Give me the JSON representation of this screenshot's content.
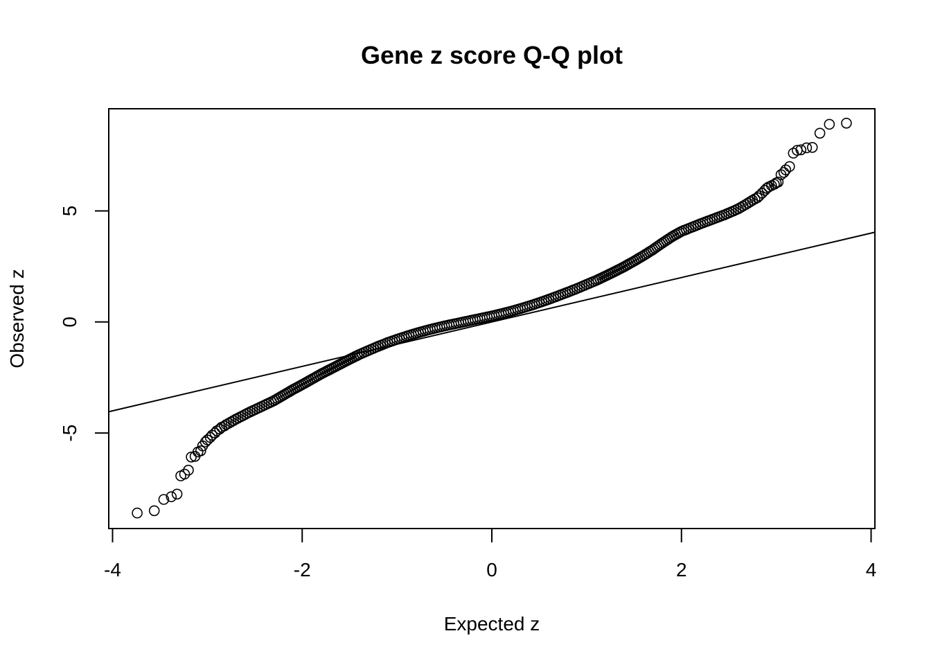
{
  "chart_data": {
    "type": "scatter",
    "title": "Gene z score Q-Q plot",
    "xlabel": "Expected z",
    "ylabel": "Observed z",
    "xlim": [
      -4.04,
      4.04
    ],
    "ylim": [
      -9.3,
      9.6
    ],
    "xticks": [
      -4,
      -2,
      0,
      2,
      4
    ],
    "yticks": [
      -5,
      0,
      5
    ],
    "grid": false,
    "reference_line": {
      "intercept": 0,
      "slope": 1
    },
    "points": {
      "x": [
        -3.74,
        -3.56,
        -3.46,
        -3.38,
        -3.32,
        -3.28,
        -3.24,
        -3.2,
        -3.17,
        -3.13,
        -3.1,
        -3.07,
        -3.05,
        -3.02,
        -3.0,
        -2.97,
        -2.95,
        -2.92,
        -2.9,
        -2.87,
        -2.85,
        -2.82,
        -2.8,
        -2.75,
        -2.7,
        -2.65,
        -2.6,
        -2.55,
        -2.5,
        -2.45,
        -2.4,
        -2.35,
        -2.3,
        -2.2,
        -2.1,
        -2.0,
        -1.9,
        -1.8,
        -1.7,
        -1.6,
        -1.5,
        -1.4,
        -1.3,
        -1.2,
        -1.1,
        -1.0,
        -0.9,
        -0.8,
        -0.7,
        -0.6,
        -0.5,
        -0.4,
        -0.3,
        -0.2,
        -0.1,
        0.0,
        0.1,
        0.2,
        0.3,
        0.4,
        0.5,
        0.6,
        0.7,
        0.8,
        0.9,
        1.0,
        1.1,
        1.2,
        1.3,
        1.4,
        1.5,
        1.6,
        1.7,
        1.8,
        1.9,
        2.0,
        2.1,
        2.2,
        2.3,
        2.35,
        2.4,
        2.45,
        2.5,
        2.55,
        2.6,
        2.65,
        2.7,
        2.75,
        2.8,
        2.82,
        2.85,
        2.88,
        2.9,
        2.92,
        2.95,
        2.98,
        3.0,
        3.02,
        3.05,
        3.08,
        3.1,
        3.14,
        3.18,
        3.22,
        3.26,
        3.32,
        3.38,
        3.46,
        3.56,
        3.74
      ],
      "y": [
        -8.6,
        -8.5,
        -7.99,
        -7.87,
        -7.75,
        -6.93,
        -6.85,
        -6.67,
        -6.08,
        -6.05,
        -5.85,
        -5.8,
        -5.58,
        -5.4,
        -5.31,
        -5.2,
        -5.1,
        -5.0,
        -4.9,
        -4.82,
        -4.74,
        -4.68,
        -4.62,
        -4.5,
        -4.38,
        -4.27,
        -4.16,
        -4.05,
        -3.95,
        -3.85,
        -3.75,
        -3.65,
        -3.55,
        -3.3,
        -3.05,
        -2.82,
        -2.58,
        -2.34,
        -2.12,
        -1.9,
        -1.68,
        -1.47,
        -1.28,
        -1.1,
        -0.93,
        -0.78,
        -0.64,
        -0.51,
        -0.39,
        -0.28,
        -0.18,
        -0.09,
        0.0,
        0.09,
        0.18,
        0.27,
        0.37,
        0.48,
        0.6,
        0.73,
        0.87,
        1.02,
        1.18,
        1.34,
        1.51,
        1.69,
        1.87,
        2.07,
        2.28,
        2.5,
        2.74,
        2.99,
        3.26,
        3.56,
        3.84,
        4.08,
        4.25,
        4.42,
        4.58,
        4.66,
        4.74,
        4.82,
        4.91,
        5.0,
        5.1,
        5.22,
        5.35,
        5.48,
        5.6,
        5.68,
        5.8,
        5.93,
        6.02,
        6.08,
        6.14,
        6.2,
        6.26,
        6.3,
        6.63,
        6.73,
        6.85,
        7.0,
        7.6,
        7.73,
        7.75,
        7.84,
        7.86,
        8.5,
        8.9,
        8.95
      ]
    }
  }
}
